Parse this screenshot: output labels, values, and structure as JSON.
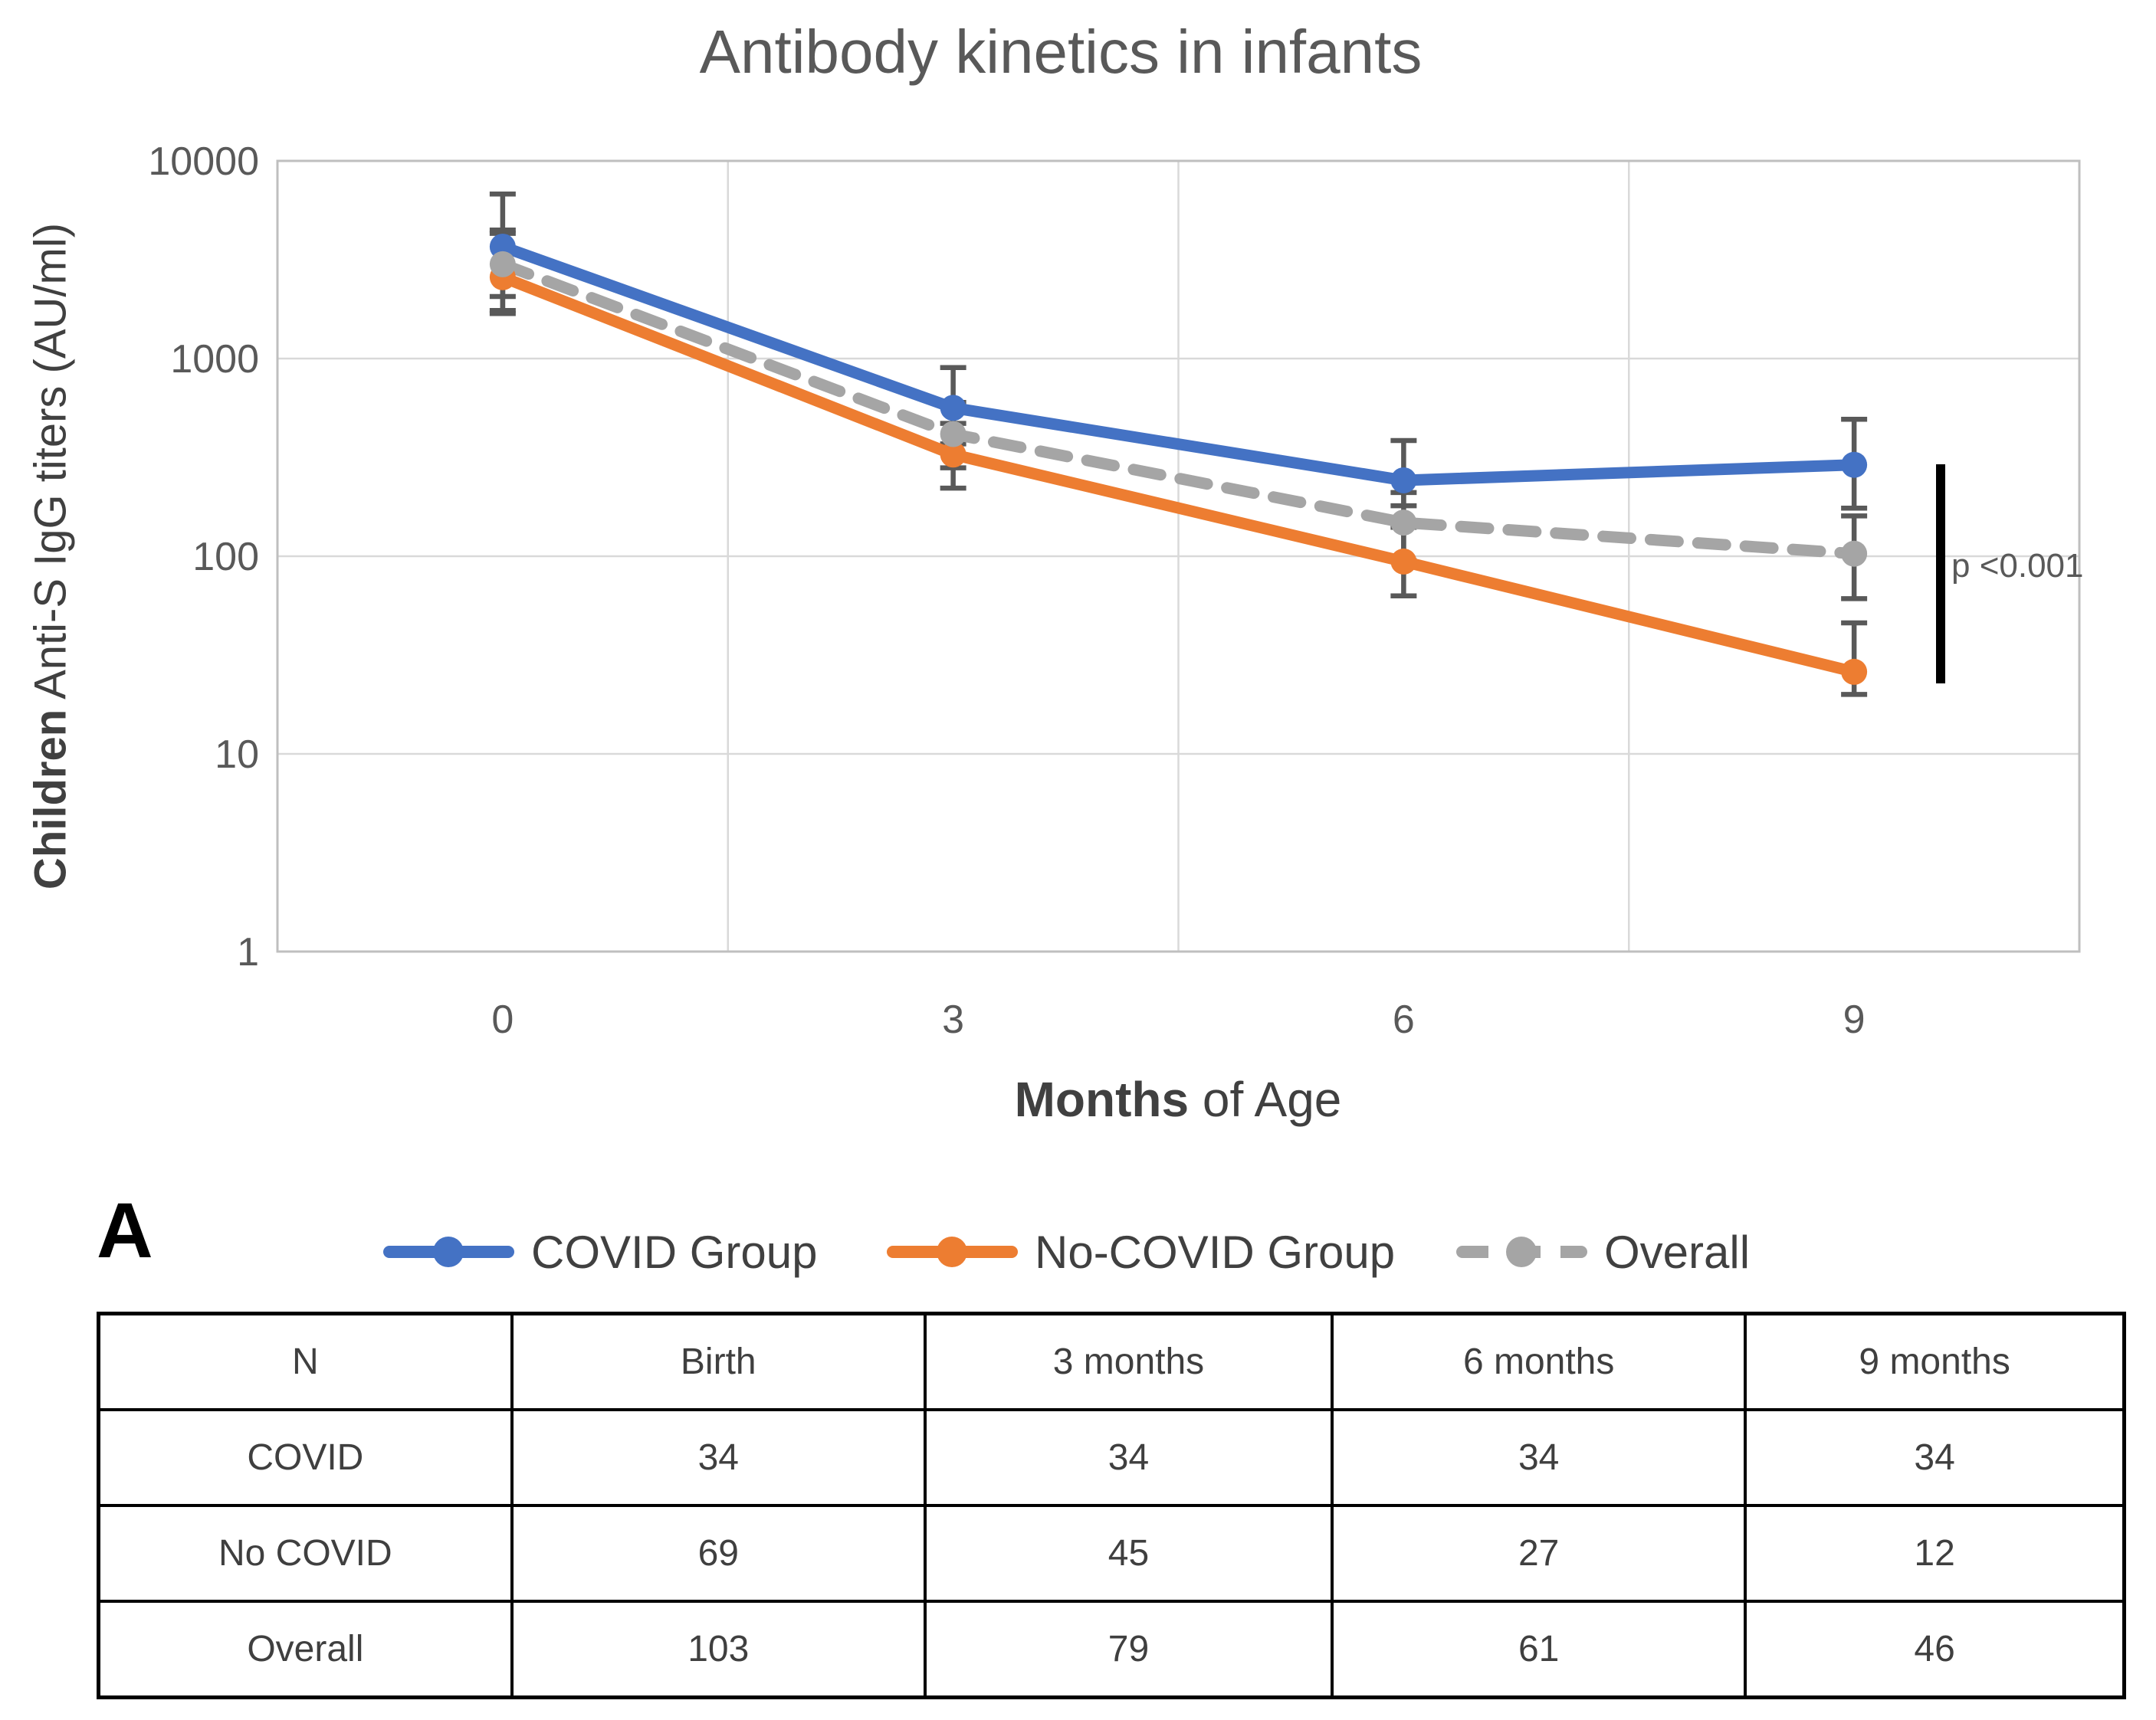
{
  "title": "Antibody kinetics in infants",
  "panel_label": "A",
  "y_axis_title": {
    "bold": "Children",
    "rest": " Anti-S IgG titers (AU/ml)"
  },
  "x_axis_title": {
    "bold": "Months",
    "rest": " of Age"
  },
  "colors": {
    "covid_blue": "#4472C4",
    "no_covid_orange": "#ED7D31",
    "overall_gray": "#A5A5A5",
    "error_bar": "#595959",
    "gridline": "#D9D9D9",
    "plot_border": "#BFBFBF",
    "axis_text": "#595959",
    "significance_bar": "#000000"
  },
  "legend": {
    "items": [
      {
        "label": "COVID Group"
      },
      {
        "label": "No-COVID Group"
      },
      {
        "label": "Overall"
      }
    ]
  },
  "chart_data": {
    "type": "line",
    "title": "Antibody kinetics in infants",
    "xlabel": "Months of Age",
    "ylabel": "Children Anti-S IgG titers (AU/ml)",
    "x": [
      0,
      3,
      6,
      9
    ],
    "x_categories": [
      "0",
      "3",
      "6",
      "9"
    ],
    "y_scale": "log10",
    "ylim": [
      1,
      10000
    ],
    "yticks": [
      10000,
      1000,
      100,
      10,
      1
    ],
    "grid": true,
    "legend_position": "bottom",
    "series": [
      {
        "name": "COVID Group",
        "color": "#4472C4",
        "dash": "solid",
        "values": [
          3680,
          563,
          242,
          290
        ],
        "err_lo": [
          2060,
          370,
          180,
          175
        ],
        "err_hi": [
          6800,
          900,
          385,
          493
        ]
      },
      {
        "name": "No-COVID Group",
        "color": "#ED7D31",
        "dash": "solid",
        "values": [
          2580,
          327,
          94,
          26
        ],
        "err_lo": [
          1690,
          221,
          63,
          20
        ],
        "err_hi": [
          4300,
          470,
          140,
          46
        ]
      },
      {
        "name": "Overall",
        "color": "#A5A5A5",
        "dash": "dashed",
        "values": [
          3000,
          415,
          148,
          103
        ],
        "err_lo": [
          1750,
          280,
          95,
          61
        ],
        "err_hi": [
          4470,
          600,
          210,
          160
        ]
      }
    ],
    "annotation": {
      "text": "p <0.001"
    }
  },
  "table": {
    "header": [
      "N",
      "Birth",
      "3 months",
      "6 months",
      "9 months"
    ],
    "rows": [
      [
        "COVID",
        "34",
        "34",
        "34",
        "34"
      ],
      [
        "No COVID",
        "69",
        "45",
        "27",
        "12"
      ],
      [
        "Overall",
        "103",
        "79",
        "61",
        "46"
      ]
    ]
  }
}
